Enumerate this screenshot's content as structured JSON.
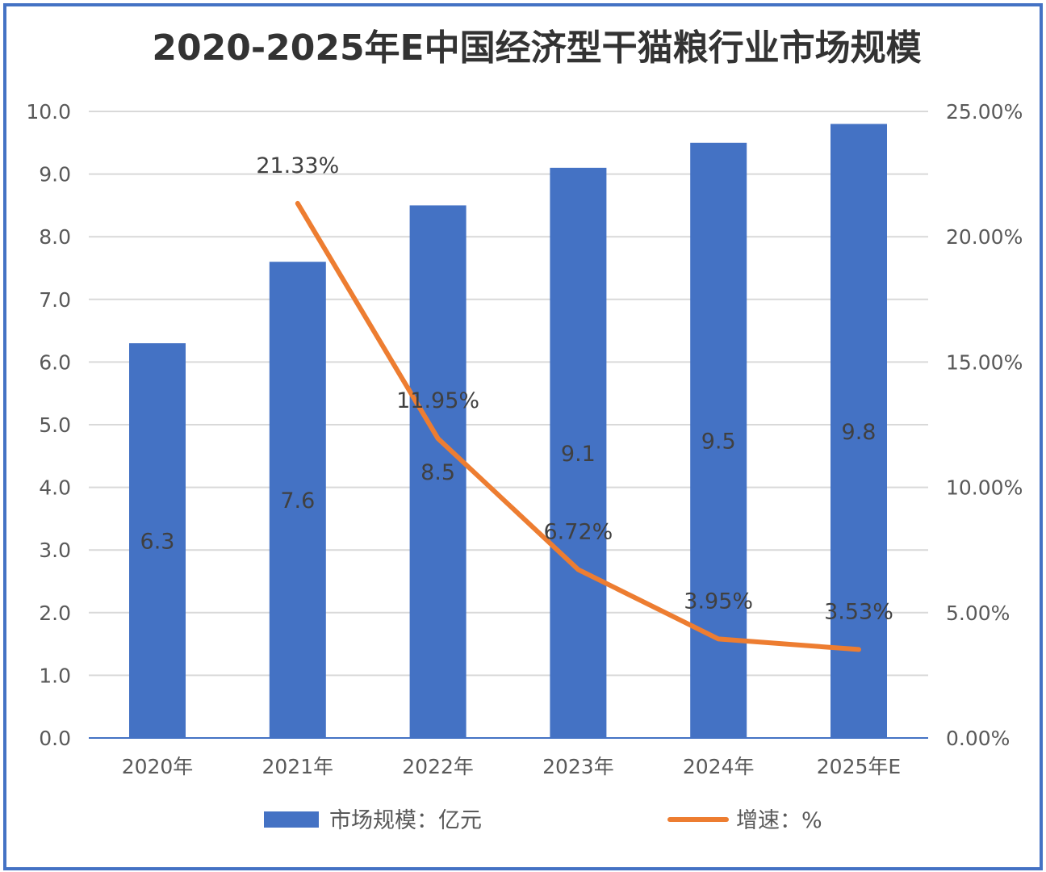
{
  "chart_data": {
    "type": "bar+line",
    "title": "2020-2025年E中国经济型干猫粮行业市场规模",
    "categories": [
      "2020年",
      "2021年",
      "2022年",
      "2023年",
      "2024年",
      "2025年E"
    ],
    "series": [
      {
        "name": "市场规模：亿元",
        "type": "bar",
        "axis": "left",
        "values": [
          6.3,
          7.6,
          8.5,
          9.1,
          9.5,
          9.8
        ],
        "labels": [
          "6.3",
          "7.6",
          "8.5",
          "9.1",
          "9.5",
          "9.8"
        ],
        "color": "#4472C4"
      },
      {
        "name": "增速：%",
        "type": "line",
        "axis": "right",
        "values": [
          null,
          21.33,
          11.95,
          6.72,
          3.95,
          3.53
        ],
        "labels": [
          "",
          "21.33%",
          "11.95%",
          "6.72%",
          "3.95%",
          "3.53%"
        ],
        "color": "#ED7D31"
      }
    ],
    "y_left": {
      "range": [
        0,
        10
      ],
      "ticks": [
        "0.0",
        "1.0",
        "2.0",
        "3.0",
        "4.0",
        "5.0",
        "6.0",
        "7.0",
        "8.0",
        "9.0",
        "10.0"
      ]
    },
    "y_right": {
      "range": [
        0,
        25
      ],
      "ticks": [
        "0.00%",
        "5.00%",
        "10.00%",
        "15.00%",
        "20.00%",
        "25.00%"
      ]
    },
    "grid": true,
    "legend": "bottom"
  }
}
